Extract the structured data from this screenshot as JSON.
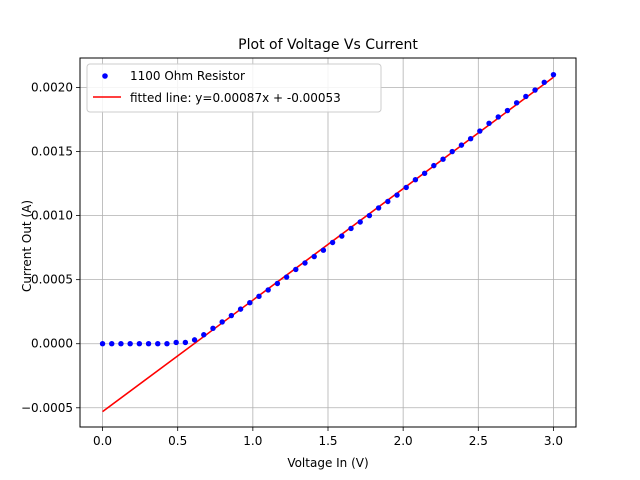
{
  "chart_data": {
    "type": "scatter",
    "title": "Plot of Voltage Vs Current",
    "xlabel": "Voltage In (V)",
    "ylabel": "Current Out (A)",
    "xlim": [
      -0.15,
      3.15
    ],
    "ylim": [
      -0.00065,
      0.00223
    ],
    "xticks": [
      0.0,
      0.5,
      1.0,
      1.5,
      2.0,
      2.5,
      3.0
    ],
    "xtick_labels": [
      "0.0",
      "0.5",
      "1.0",
      "1.5",
      "2.0",
      "2.5",
      "3.0"
    ],
    "yticks": [
      -0.0005,
      0.0,
      0.0005,
      0.001,
      0.0015,
      0.002
    ],
    "ytick_labels": [
      "−0.0005",
      "0.0000",
      "0.0005",
      "0.0010",
      "0.0015",
      "0.0020"
    ],
    "grid": true,
    "legend_position": "top-left",
    "series": [
      {
        "name": "1100 Ohm Resistor",
        "kind": "scatter",
        "color": "#0000ff",
        "x": [
          0.0,
          0.0612,
          0.1224,
          0.1837,
          0.2449,
          0.3061,
          0.3673,
          0.4286,
          0.4898,
          0.551,
          0.6122,
          0.6735,
          0.7347,
          0.7959,
          0.8571,
          0.9184,
          0.9796,
          1.0408,
          1.102,
          1.1633,
          1.2245,
          1.2857,
          1.3469,
          1.4082,
          1.4694,
          1.5306,
          1.5918,
          1.6531,
          1.7143,
          1.7755,
          1.8367,
          1.898,
          1.9592,
          2.0204,
          2.0816,
          2.1429,
          2.2041,
          2.2653,
          2.3265,
          2.3878,
          2.449,
          2.5102,
          2.5714,
          2.6327,
          2.6939,
          2.7551,
          2.8163,
          2.8776,
          2.9388,
          3.0
        ],
        "y": [
          0.0,
          0.0,
          0.0,
          0.0,
          0.0,
          0.0,
          0.0,
          0.0,
          1e-05,
          1e-05,
          3e-05,
          7e-05,
          0.00012,
          0.00017,
          0.00022,
          0.00027,
          0.00032,
          0.00037,
          0.00042,
          0.00047,
          0.00052,
          0.00058,
          0.00063,
          0.00068,
          0.00073,
          0.00079,
          0.00084,
          0.0009,
          0.00095,
          0.001,
          0.00106,
          0.00111,
          0.00116,
          0.00122,
          0.00128,
          0.00133,
          0.00139,
          0.00144,
          0.0015,
          0.00155,
          0.0016,
          0.00166,
          0.00172,
          0.00177,
          0.00182,
          0.00188,
          0.00193,
          0.00198,
          0.00204,
          0.0021
        ]
      },
      {
        "name": "fitted line: y=0.00087x + -0.00053",
        "kind": "line",
        "color": "#ff0000",
        "x": [
          0.0,
          3.0
        ],
        "y": [
          -0.00053,
          0.00208
        ]
      }
    ]
  }
}
